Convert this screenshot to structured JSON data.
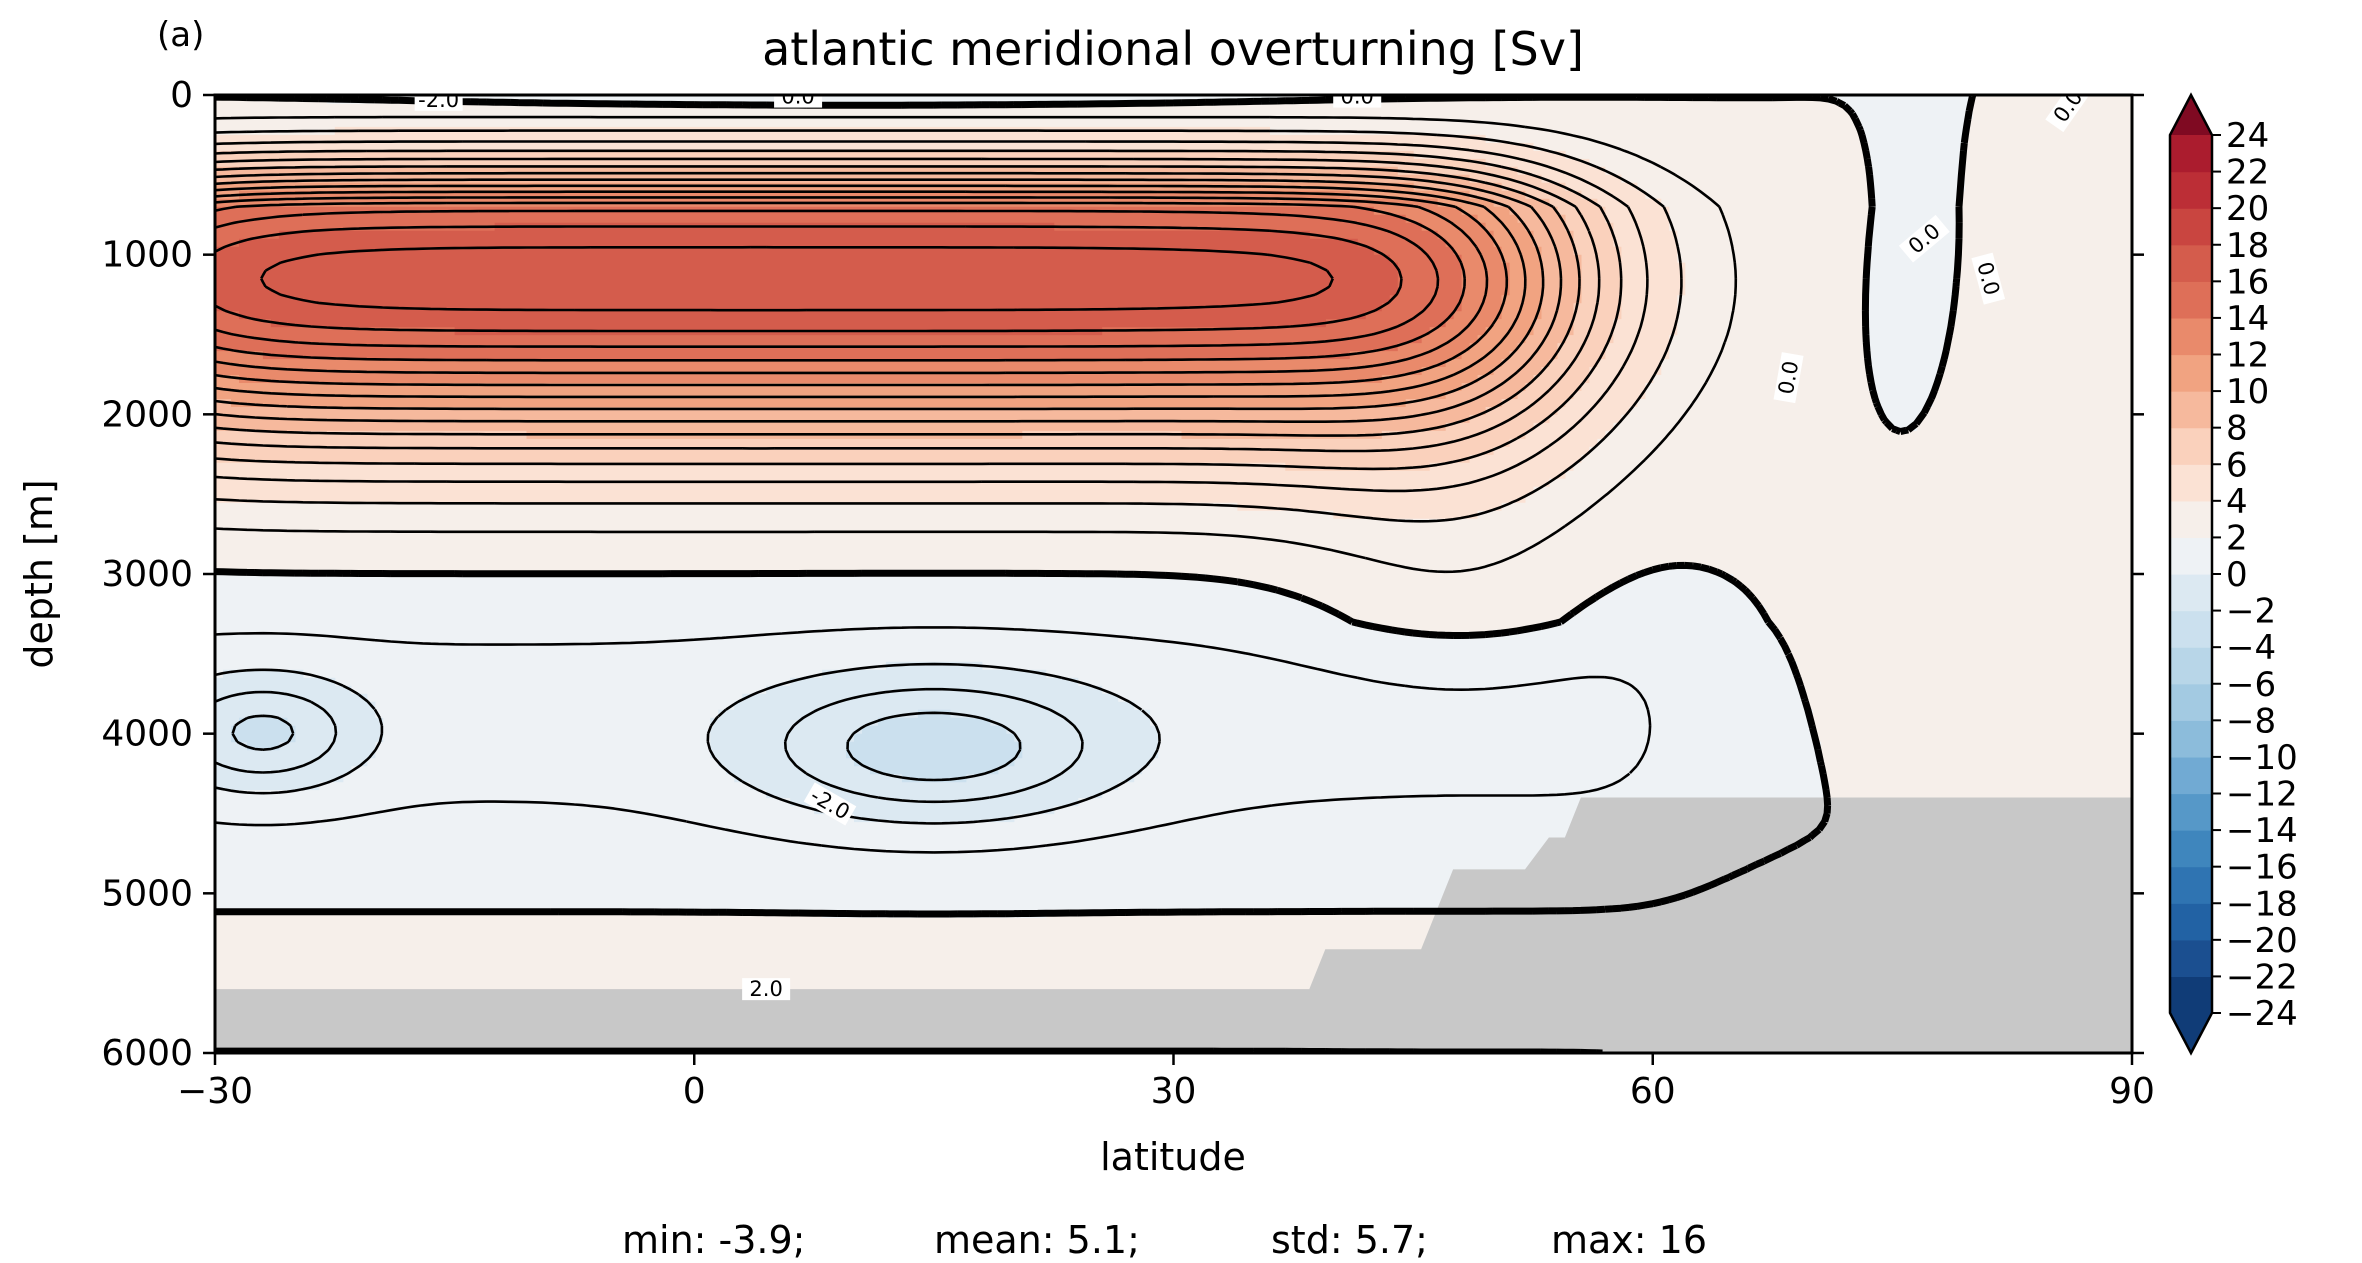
{
  "chart_data": {
    "type": "contour",
    "panel_label": "(a)",
    "title": "atlantic meridional overturning [Sv]",
    "xlabel": "latitude",
    "ylabel": "depth [m]",
    "xlim": [
      -30,
      90
    ],
    "ylim": [
      6000,
      0
    ],
    "x_ticks": [
      "−30",
      "0",
      "30",
      "60",
      "90"
    ],
    "y_ticks": [
      "0",
      "1000",
      "2000",
      "3000",
      "4000",
      "5000",
      "6000"
    ],
    "colorbar": {
      "ticks": [
        "24",
        "22",
        "20",
        "18",
        "16",
        "14",
        "12",
        "10",
        "8",
        "6",
        "4",
        "2",
        "0",
        "−2",
        "−4",
        "−6",
        "−8",
        "−10",
        "−12",
        "−14",
        "−16",
        "−18",
        "−20",
        "−22",
        "−24"
      ],
      "levels_from": -24,
      "levels_to": 24,
      "level_step": 2,
      "colors_pos": [
        "#f6efea",
        "#fbe2d4",
        "#fad1bc",
        "#f6b99d",
        "#f1a381",
        "#e98a6b",
        "#de6f58",
        "#d45c4c",
        "#c94540",
        "#bc2e36",
        "#ab1c2e",
        "#960f27",
        "#7f0a22"
      ],
      "colors_neg": [
        "#eef2f5",
        "#dce9f2",
        "#cbe0ee",
        "#b8d6e8",
        "#a3cae2",
        "#8cbcdb",
        "#71aad3",
        "#5698c8",
        "#3f86bd",
        "#2f74b2",
        "#2262a4",
        "#1b4f90",
        "#103c77"
      ],
      "extend": "both"
    },
    "contour_labels": [
      "-2.0",
      "0.0",
      "0.0",
      "0.0",
      "0.0",
      "0.0",
      "0.0",
      "-2.0",
      "2.0"
    ],
    "peak_value": 16,
    "peak_location": {
      "latitude": 27,
      "depth": 1100
    },
    "topography_color": "#c8c8c8",
    "stats": {
      "min": "min: -3.9;",
      "mean": "mean: 5.1;",
      "std": "std: 5.7;",
      "max": "max: 16"
    }
  }
}
